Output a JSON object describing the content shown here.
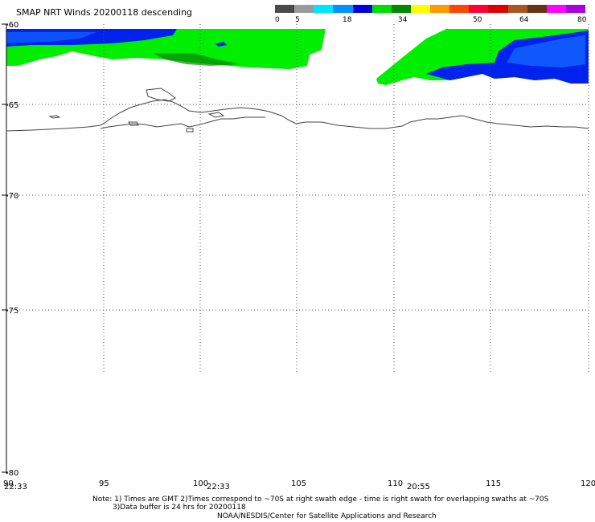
{
  "title": "SMAP NRT Winds  20200118 descending",
  "colorbar": {
    "labels": [
      "0",
      "5",
      "18",
      "34",
      "50",
      "64",
      "80"
    ],
    "segments": [
      {
        "color": "#4a4a4a"
      },
      {
        "color": "#9a9a9a"
      },
      {
        "color": "#00e5ff"
      },
      {
        "color": "#0090ff"
      },
      {
        "color": "#0000dd"
      },
      {
        "color": "#00dd00"
      },
      {
        "color": "#008800"
      },
      {
        "color": "#ffff00"
      },
      {
        "color": "#ff9900"
      },
      {
        "color": "#ff4400"
      },
      {
        "color": "#ff0033"
      },
      {
        "color": "#dd0000"
      },
      {
        "color": "#aa5522"
      },
      {
        "color": "#663311"
      },
      {
        "color": "#ff00ff"
      },
      {
        "color": "#aa00dd"
      }
    ]
  },
  "map": {
    "lat_labels": [
      "-60",
      "-65",
      "-70",
      "-75",
      "-80"
    ],
    "lon_labels": [
      "90",
      "95",
      "100",
      "105",
      "110",
      "115",
      "120"
    ],
    "lat_range": [
      -80,
      -60
    ],
    "lon_range": [
      90,
      120
    ],
    "time_labels": [
      "22:33",
      "22:33",
      "20:55"
    ],
    "wind_colors": {
      "low_green": "#00ee00",
      "dark_green": "#008800",
      "blue": "#0022ee",
      "light_blue": "#1166ff"
    }
  },
  "notes": {
    "line1": "Note: 1) Times are GMT 2)Times correspond to ~70S at right swath edge - time is right swath for overlapping swaths at ~70S",
    "line2": "3)Data buffer is 24 hrs for 20200118",
    "line3": "NOAA/NESDIS/Center for Satellite Applications and Research"
  }
}
